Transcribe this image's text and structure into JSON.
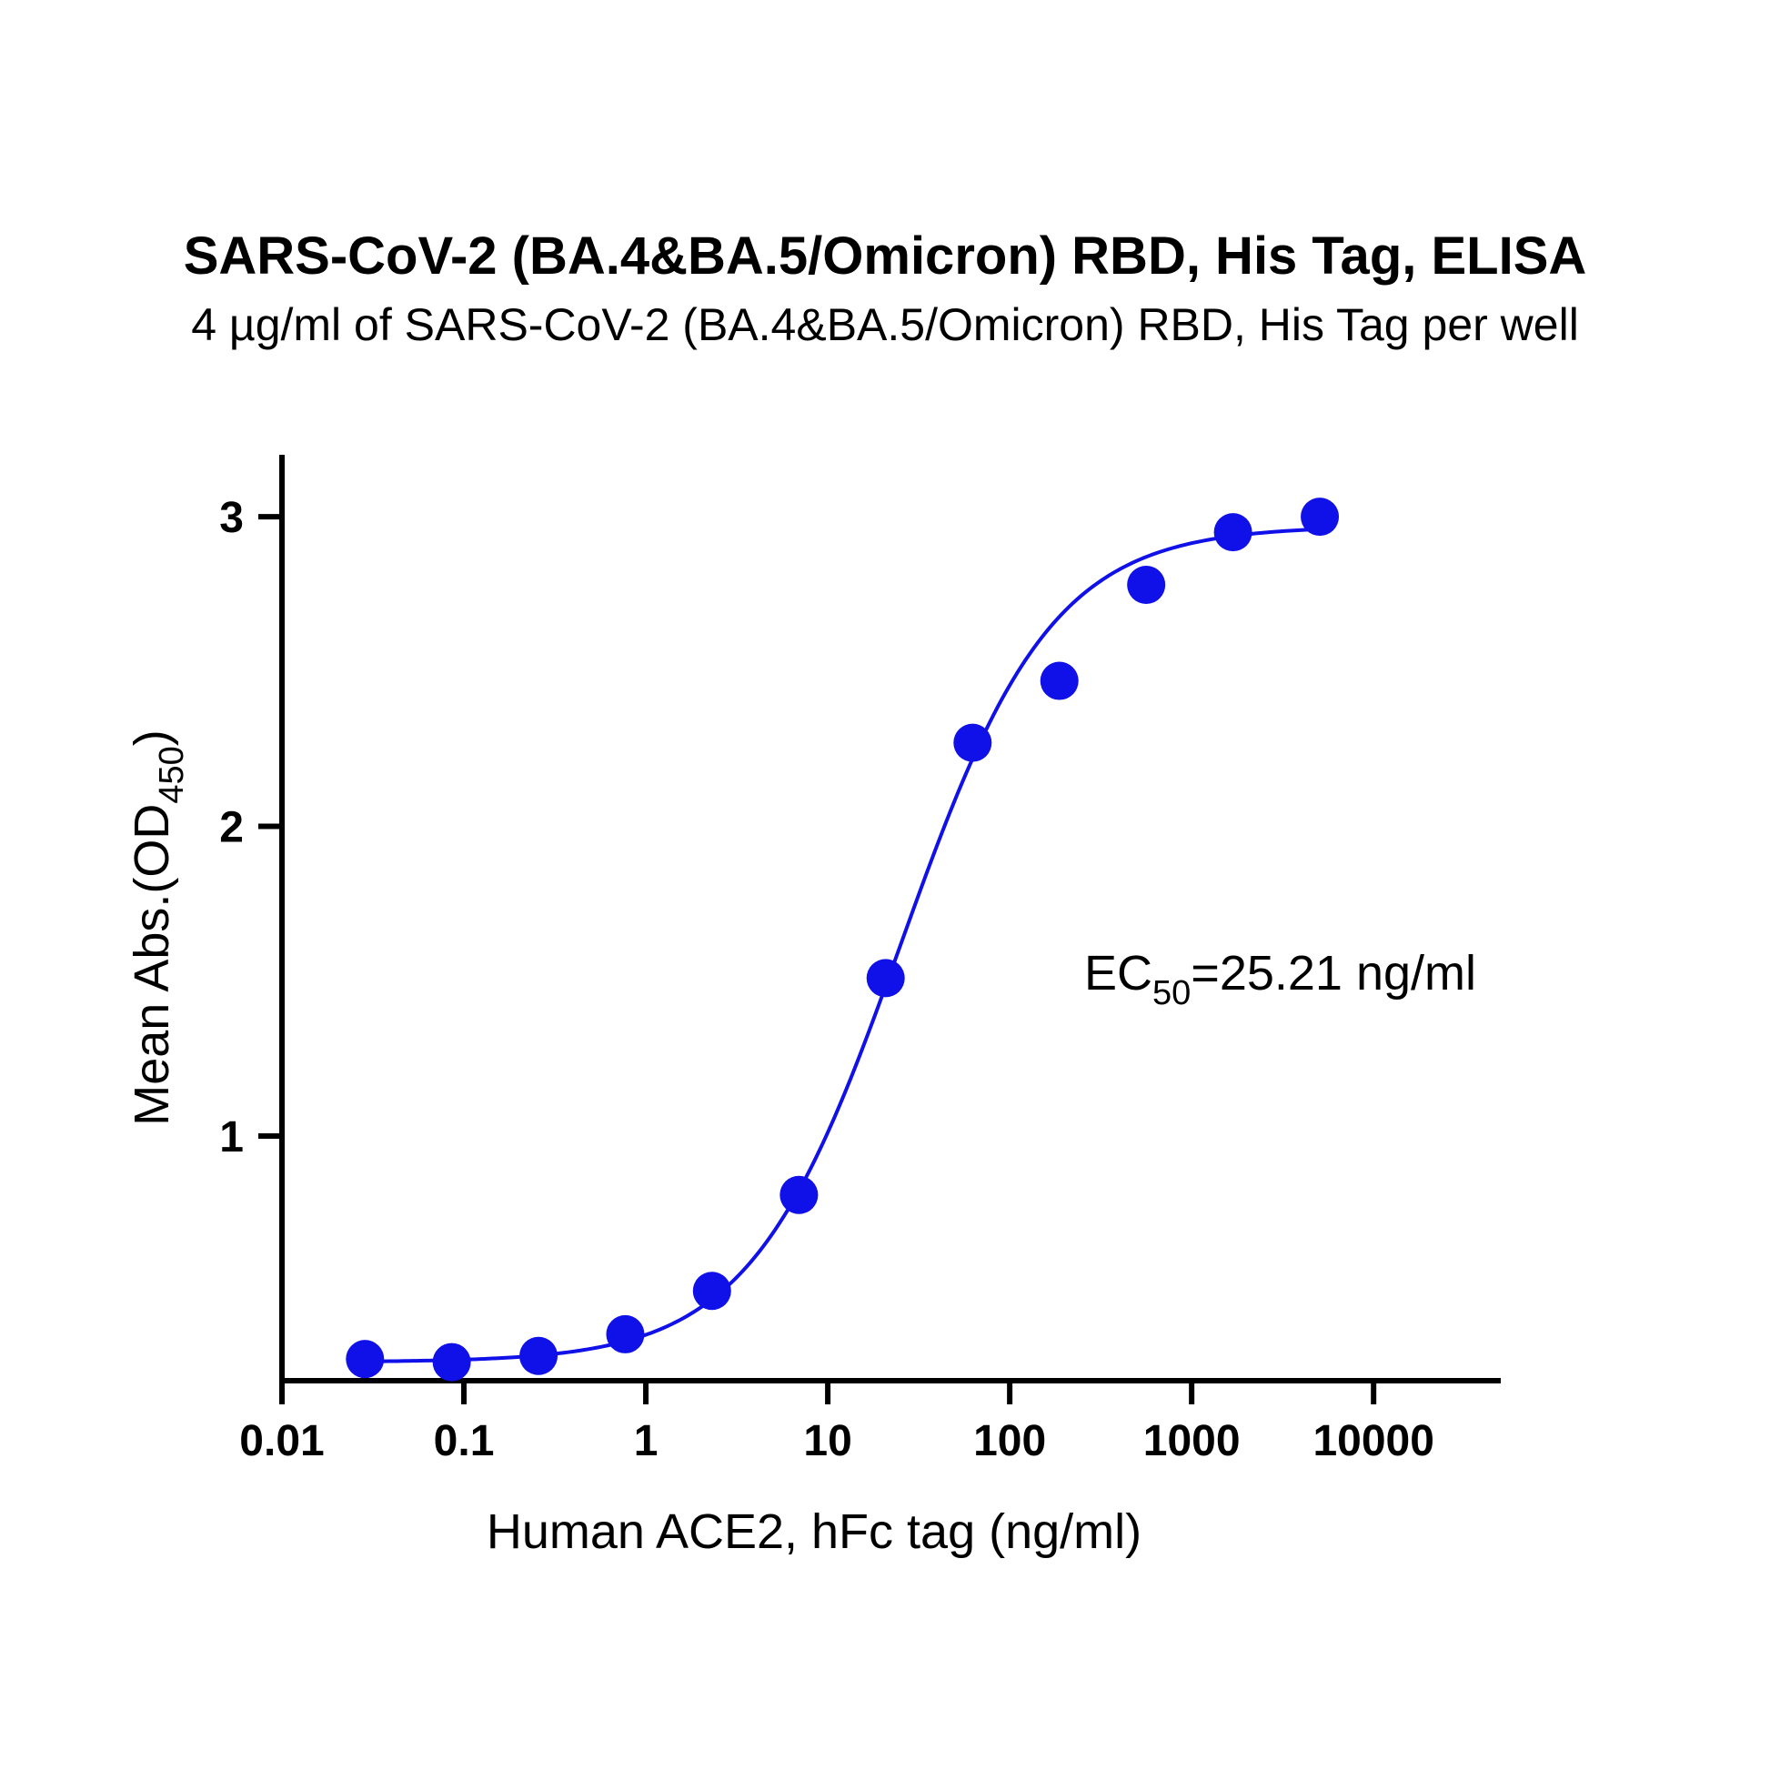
{
  "colors": {
    "series": "#1010e8",
    "axis": "#000000",
    "background": "#ffffff"
  },
  "chart_data": {
    "type": "scatter",
    "title": "SARS-CoV-2 (BA.4&BA.5/Omicron) RBD, His Tag, ELISA",
    "subtitle": "4 µg/ml of SARS-CoV-2 (BA.4&BA.5/Omicron) RBD, His Tag per well",
    "xlabel": "Human ACE2, hFc tag (ng/ml)",
    "ylabel": {
      "main": "Mean Abs.(OD",
      "sub": "450",
      "close": ")"
    },
    "xscale": "log",
    "xlim": [
      0.01,
      50000
    ],
    "ylim": [
      0.21,
      3.2
    ],
    "x_ticks": [
      "0.01",
      "0.1",
      "1",
      "10",
      "100",
      "1000",
      "10000"
    ],
    "y_ticks": [
      "1",
      "2",
      "3"
    ],
    "grid": false,
    "annotation": {
      "prefix": "EC",
      "sub": "50",
      "suffix": "=25.21 ng/ml",
      "value": 25.21
    },
    "series": [
      {
        "x": [
          0.0286,
          0.0857,
          0.257,
          0.771,
          2.31,
          6.94,
          20.8,
          62.5,
          187.5,
          562.5,
          1687.5,
          5062.5
        ],
        "y": [
          0.28,
          0.27,
          0.29,
          0.36,
          0.5,
          0.81,
          1.51,
          2.27,
          2.47,
          2.78,
          2.95,
          3.0
        ],
        "fit": {
          "model": "4PL",
          "bottom": 0.27,
          "top": 2.97,
          "ec50": 25.21,
          "hill": 1.05
        }
      }
    ]
  }
}
